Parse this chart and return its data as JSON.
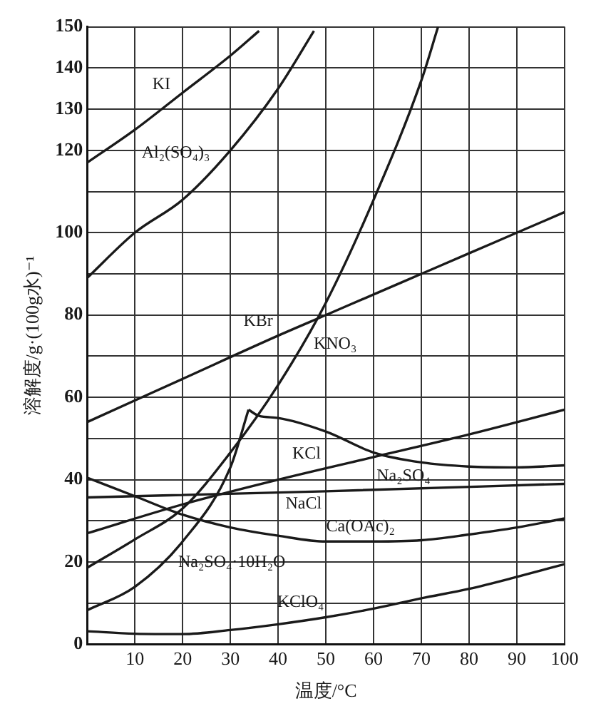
{
  "chart_data": {
    "type": "line",
    "xlabel": "温度/°C",
    "ylabel": "溶解度/g·(100g水)⁻¹",
    "xlim": [
      0,
      100
    ],
    "ylim": [
      0,
      150
    ],
    "xticks": [
      {
        "value": 0,
        "label": null
      },
      10,
      20,
      30,
      40,
      50,
      60,
      70,
      80,
      90,
      100
    ],
    "yticks": [
      0,
      {
        "value": 10,
        "label": null
      },
      20,
      {
        "value": 30,
        "label": null
      },
      40,
      {
        "value": 50,
        "label": null
      },
      60,
      {
        "value": 70,
        "label": null
      },
      80,
      {
        "value": 90,
        "label": null
      },
      100,
      {
        "value": 110,
        "label": null
      },
      120,
      130,
      140,
      150
    ],
    "grid": true,
    "legend": false,
    "marker": "none",
    "line_style": "solid",
    "series": [
      {
        "name": "KI",
        "color": "#1a1a1a",
        "x": [
          0,
          10,
          20,
          30,
          36
        ],
        "values": [
          117,
          125,
          134,
          143,
          149
        ]
      },
      {
        "name": "Al₂(SO₄)₃",
        "color": "#1a1a1a",
        "x": [
          0,
          10,
          20,
          30,
          40,
          47.5
        ],
        "values": [
          89,
          100,
          108,
          120,
          135,
          149
        ]
      },
      {
        "name": "KNO₃",
        "color": "#1a1a1a",
        "x": [
          0,
          10,
          20,
          30,
          40,
          50,
          60,
          70,
          73.5
        ],
        "values": [
          18.6,
          25.5,
          33,
          46.6,
          63,
          83,
          108,
          137,
          150
        ]
      },
      {
        "name": "KBr",
        "color": "#1a1a1a",
        "x": [
          0,
          20,
          40,
          50,
          60,
          70,
          80,
          90,
          100
        ],
        "values": [
          54,
          64.5,
          75,
          80,
          85,
          90,
          95,
          100,
          105
        ]
      },
      {
        "name": "Na₂SO₄·10H₂O",
        "color": "#1a1a1a",
        "x": [
          0,
          10,
          20,
          30,
          33.8
        ],
        "values": [
          8.3,
          14,
          25,
          43,
          57
        ]
      },
      {
        "name": "Na₂SO₄",
        "color": "#1a1a1a",
        "x": [
          33.8,
          36,
          40,
          50,
          60,
          70,
          80,
          90,
          100
        ],
        "values": [
          57,
          55.5,
          55,
          51.7,
          46.6,
          44.2,
          43.2,
          43,
          43.5
        ]
      },
      {
        "name": "KCl",
        "color": "#1a1a1a",
        "x": [
          0,
          20,
          40,
          60,
          80,
          100
        ],
        "values": [
          27,
          34,
          40,
          45.5,
          51,
          57
        ]
      },
      {
        "name": "NaCl",
        "color": "#1a1a1a",
        "x": [
          0,
          50,
          100
        ],
        "values": [
          35.7,
          37.2,
          39
        ]
      },
      {
        "name": "Ca(OAc)₂",
        "color": "#1a1a1a",
        "x": [
          0,
          10,
          20,
          30,
          40,
          50,
          60,
          70,
          80,
          90,
          100
        ],
        "values": [
          40.5,
          36,
          31.5,
          28.4,
          26.4,
          25,
          25,
          25.3,
          26.7,
          28.4,
          30.6
        ]
      },
      {
        "name": "KClO₄",
        "color": "#1a1a1a",
        "x": [
          0,
          10,
          20,
          30,
          40,
          50,
          60,
          70,
          80,
          90,
          100
        ],
        "values": [
          3.2,
          2.6,
          2.5,
          3.5,
          4.9,
          6.6,
          8.7,
          11.2,
          13.5,
          16.4,
          19.5
        ]
      }
    ]
  }
}
